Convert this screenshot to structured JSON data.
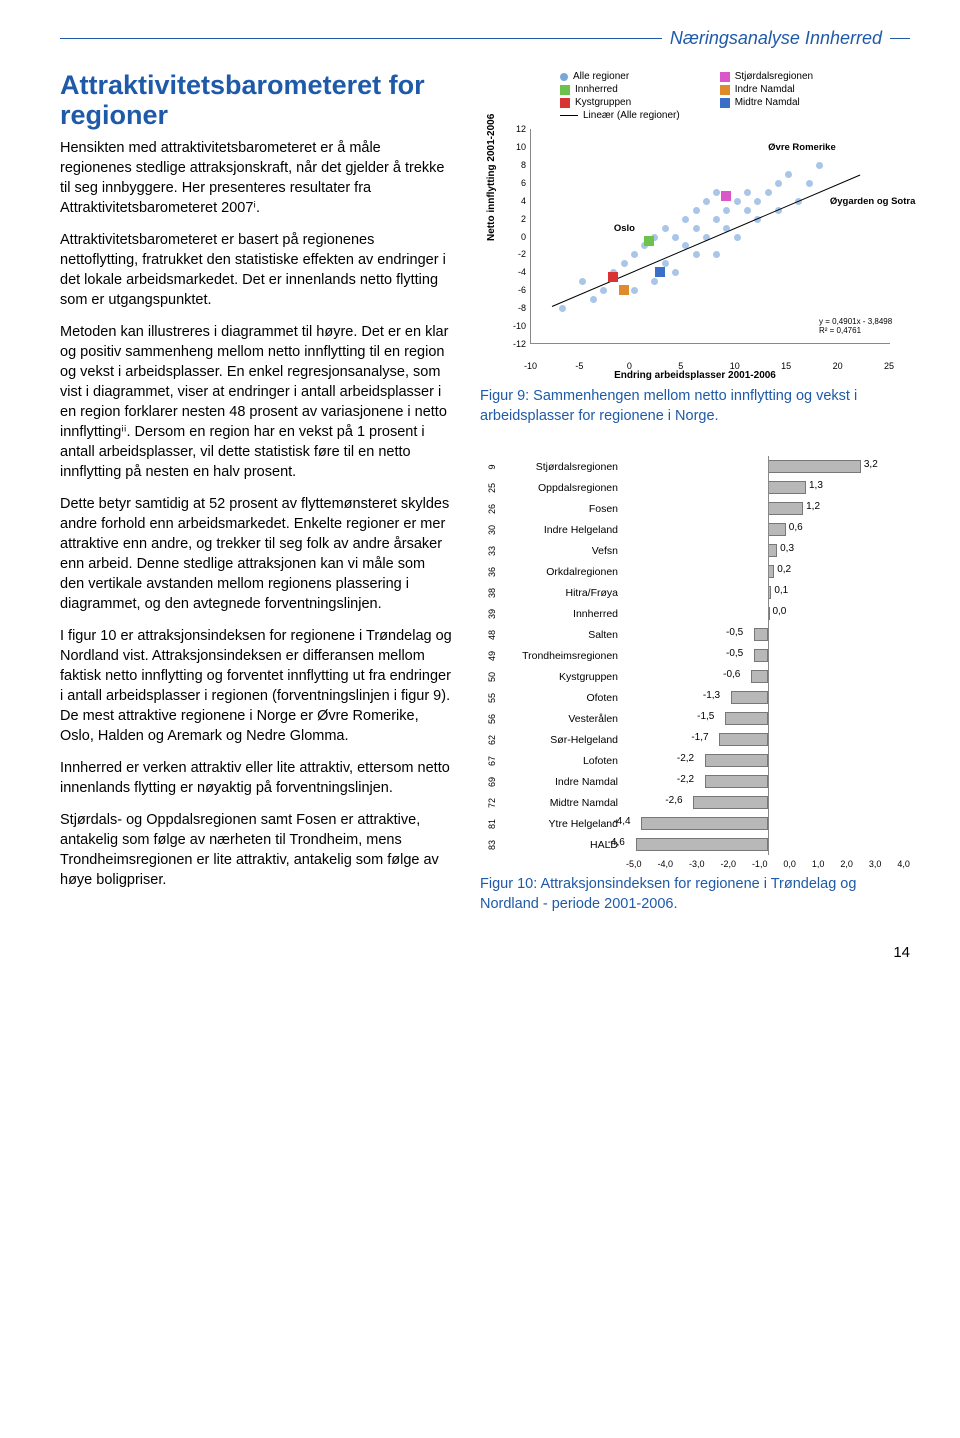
{
  "header": "Næringsanalyse Innherred",
  "page_number": "14",
  "title": "Attraktivitetsbarometeret for regioner",
  "paragraphs": [
    "Hensikten med attraktivitetsbarometeret er å måle regionenes stedlige attraksjonskraft, når det gjelder å trekke til seg innbyggere. Her presenteres resultater fra Attraktivitets­barometeret 2007ⁱ.",
    "Attraktivitetsbarometeret er basert på regionenes nettoflytting, fratrukket den statistiske effekten av endringer i det lokale arbeidsmarkedet. Det er innenlands netto flytting som er utgangspunktet.",
    "Metoden kan illustreres i diagrammet til høyre. Det er en klar og positiv sammenheng mellom netto innflytting til en region og vekst i arbeids­plasser. En enkel regresjonsanalyse, som vist i diagrammet, viser at endringer i antall arbeids­plasser i en region forklarer nesten 48 prosent av variasjonene i netto innflyttingⁱⁱ. Dersom en region har en vekst på 1 prosent i antall arbeids­plasser, vil dette statistisk føre til en netto innflytting på nesten en halv prosent.",
    "Dette betyr samtidig at 52 prosent av flyttemønsteret skyldes andre forhold enn arbeidsmarkedet. Enkelte regioner er mer attraktive enn andre, og trekker til seg folk av andre årsaker enn arbeid. Denne stedlige attraksjonen kan vi måle som den vertikale avstanden mellom regionens plassering i diagrammet, og den avtegnede forventnings­linjen.",
    "I figur 10 er attraksjonsindeksen for regionene i Trøndelag og Nordland vist. Attraksjonsindeksen er differansen mellom faktisk netto innflytting og forventet innflytting ut fra endringer i antall arbeidsplasser i regionen (forventningslinjen i figur 9). De mest attraktive regionene i Norge er Øvre Romerike, Oslo, Halden og Aremark og Nedre Glomma.",
    "Innherred er verken attraktiv eller lite attraktiv, ettersom netto innenlands flytting er nøyaktig på forventningslinjen.",
    "Stjørdals- og Oppdalsregionen samt Fosen er attraktive, antakelig som følge av nærheten til Trondheim, mens Trondheimsregionen er lite attraktiv, antakelig som følge av høye boligpriser."
  ],
  "fig9_caption": "Figur 9: Sammenhengen mellom netto innflytting og vekst i arbeidsplasser for regionene i Norge.",
  "fig10_caption": "Figur 10: Attraksjonsindeksen for regionene i Trøndelag og Nordland - periode 2001-2006.",
  "scatter": {
    "ylabel": "Netto innflytting 2001-2006",
    "xlabel": "Endring arbeidsplasser 2001-2006",
    "xlim": [
      -10,
      25
    ],
    "ylim": [
      -12,
      12
    ],
    "xticks": [
      -10,
      -5,
      0,
      5,
      10,
      15,
      20,
      25
    ],
    "yticks": [
      12,
      10,
      8,
      6,
      4,
      2,
      0,
      -2,
      -4,
      -6,
      -8,
      -10,
      -12
    ],
    "legend": [
      {
        "label": "Alle regioner",
        "type": "dot",
        "color": "#7aa7d9"
      },
      {
        "label": "Innherred",
        "type": "sq",
        "color": "#6cc24a"
      },
      {
        "label": "Kystgruppen",
        "type": "sq",
        "color": "#d93333"
      },
      {
        "label": "Lineær (Alle regioner)",
        "type": "ln",
        "color": "#000"
      },
      {
        "label": "Stjørdalsregionen",
        "type": "sq",
        "color": "#d957c9"
      },
      {
        "label": "Indre Namdal",
        "type": "sq",
        "color": "#e08a2e"
      },
      {
        "label": "Midtre Namdal",
        "type": "sq",
        "color": "#3a6fc7"
      }
    ],
    "points_bg": [
      {
        "x": -7,
        "y": -8
      },
      {
        "x": -5,
        "y": -5
      },
      {
        "x": -3,
        "y": -6
      },
      {
        "x": -2,
        "y": -4
      },
      {
        "x": -1,
        "y": -3
      },
      {
        "x": 0,
        "y": -2
      },
      {
        "x": 1,
        "y": -1
      },
      {
        "x": 2,
        "y": 0
      },
      {
        "x": 3,
        "y": -3
      },
      {
        "x": 3,
        "y": 1
      },
      {
        "x": 4,
        "y": 0
      },
      {
        "x": 4,
        "y": -4
      },
      {
        "x": 5,
        "y": 2
      },
      {
        "x": 5,
        "y": -1
      },
      {
        "x": 6,
        "y": 1
      },
      {
        "x": 6,
        "y": 3
      },
      {
        "x": 7,
        "y": 0
      },
      {
        "x": 7,
        "y": 4
      },
      {
        "x": 8,
        "y": 2
      },
      {
        "x": 8,
        "y": -2
      },
      {
        "x": 9,
        "y": 3
      },
      {
        "x": 9,
        "y": 1
      },
      {
        "x": 10,
        "y": 4
      },
      {
        "x": 10,
        "y": 0
      },
      {
        "x": 11,
        "y": 3
      },
      {
        "x": 11,
        "y": 5
      },
      {
        "x": 12,
        "y": 4
      },
      {
        "x": 12,
        "y": 2
      },
      {
        "x": 13,
        "y": 5
      },
      {
        "x": 14,
        "y": 3
      },
      {
        "x": 14,
        "y": 6
      },
      {
        "x": 15,
        "y": 7
      },
      {
        "x": 16,
        "y": 4
      },
      {
        "x": 17,
        "y": 6
      },
      {
        "x": 18,
        "y": 8
      },
      {
        "x": 2,
        "y": -5
      },
      {
        "x": -4,
        "y": -7
      },
      {
        "x": 0,
        "y": -6
      },
      {
        "x": 6,
        "y": -2
      },
      {
        "x": 8,
        "y": 5
      }
    ],
    "highlights": [
      {
        "x": 1.5,
        "y": -0.5,
        "color": "#6cc24a"
      },
      {
        "x": -2,
        "y": -4.5,
        "color": "#d93333"
      },
      {
        "x": 9,
        "y": 4.5,
        "color": "#d957c9"
      },
      {
        "x": -1,
        "y": -6,
        "color": "#e08a2e"
      },
      {
        "x": 2.5,
        "y": -4,
        "color": "#3a6fc7"
      }
    ],
    "annotations": [
      {
        "text": "Oslo",
        "x": 0,
        "y": 0
      },
      {
        "text": "Øvre Romerike",
        "x": 15,
        "y": 9
      },
      {
        "text": "Øygarden og Sotra",
        "x": 21,
        "y": 3
      }
    ],
    "equation": "y = 0,4901x - 3,8498\nR² = 0,4761",
    "trend": {
      "x1": -8,
      "y1": -7.8,
      "x2": 22,
      "y2": 6.9
    }
  },
  "bars": {
    "min": -5.0,
    "max": 4.0,
    "ticks": [
      "-5,0",
      "-4,0",
      "-3,0",
      "-2,0",
      "-1,0",
      "0,0",
      "1,0",
      "2,0",
      "3,0",
      "4,0"
    ],
    "rows": [
      {
        "rank": "9",
        "name": "Stjørdalsregionen",
        "v": 3.2,
        "label": "3,2"
      },
      {
        "rank": "25",
        "name": "Oppdalsregionen",
        "v": 1.3,
        "label": "1,3"
      },
      {
        "rank": "26",
        "name": "Fosen",
        "v": 1.2,
        "label": "1,2"
      },
      {
        "rank": "30",
        "name": "Indre Helgeland",
        "v": 0.6,
        "label": "0,6"
      },
      {
        "rank": "33",
        "name": "Vefsn",
        "v": 0.3,
        "label": "0,3"
      },
      {
        "rank": "36",
        "name": "Orkdalregionen",
        "v": 0.2,
        "label": "0,2"
      },
      {
        "rank": "38",
        "name": "Hitra/Frøya",
        "v": 0.1,
        "label": "0,1"
      },
      {
        "rank": "39",
        "name": "Innherred",
        "v": 0.0,
        "label": "0,0"
      },
      {
        "rank": "48",
        "name": "Salten",
        "v": -0.5,
        "label": "-0,5"
      },
      {
        "rank": "49",
        "name": "Trondheimsregionen",
        "v": -0.5,
        "label": "-0,5"
      },
      {
        "rank": "50",
        "name": "Kystgruppen",
        "v": -0.6,
        "label": "-0,6"
      },
      {
        "rank": "55",
        "name": "Ofoten",
        "v": -1.3,
        "label": "-1,3"
      },
      {
        "rank": "56",
        "name": "Vesterålen",
        "v": -1.5,
        "label": "-1,5"
      },
      {
        "rank": "62",
        "name": "Sør-Helgeland",
        "v": -1.7,
        "label": "-1,7"
      },
      {
        "rank": "67",
        "name": "Lofoten",
        "v": -2.2,
        "label": "-2,2"
      },
      {
        "rank": "69",
        "name": "Indre Namdal",
        "v": -2.2,
        "label": "-2,2"
      },
      {
        "rank": "72",
        "name": "Midtre Namdal",
        "v": -2.6,
        "label": "-2,6"
      },
      {
        "rank": "81",
        "name": "Ytre Helgeland",
        "v": -4.4,
        "label": "-4,4"
      },
      {
        "rank": "83",
        "name": "HALD",
        "v": -4.6,
        "label": "-4,6"
      }
    ]
  }
}
